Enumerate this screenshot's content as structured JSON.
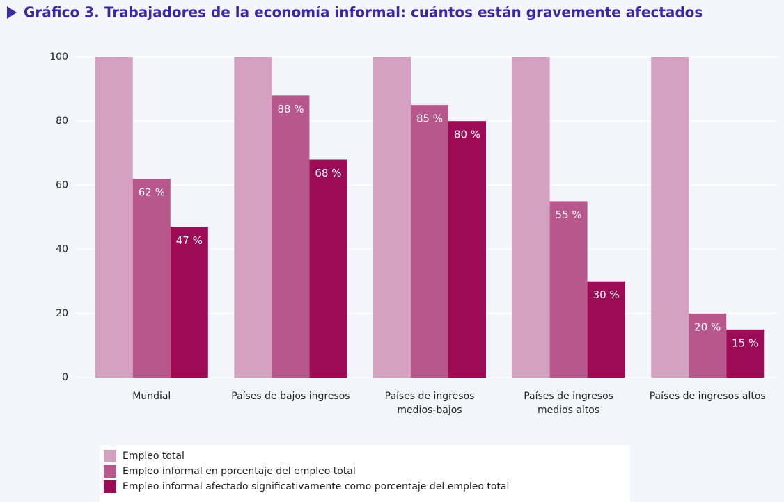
{
  "chart_data": {
    "type": "bar",
    "title": "Gráfico 3. Trabajadores de la economía informal: cuántos están gravemente afectados",
    "categories": [
      "Mundial",
      "Países de bajos ingresos",
      "Países de ingresos\nmedios-bajos",
      "Países de ingresos\nmedios altos",
      "Países de ingresos altos"
    ],
    "series": [
      {
        "name": "Empleo total",
        "color": "#d4a1c1",
        "values": [
          100,
          100,
          100,
          100,
          100
        ]
      },
      {
        "name": "Empleo informal en porcentaje del empleo total",
        "color": "#b8578b",
        "values": [
          62,
          88,
          85,
          55,
          20
        ],
        "value_labels": [
          "62 %",
          "88 %",
          "85 %",
          "55 %",
          "20 %"
        ]
      },
      {
        "name": "Empleo informal afectado significativamente como porcentaje del empleo total",
        "color": "#9c0c56",
        "values": [
          47,
          68,
          80,
          30,
          15
        ],
        "value_labels": [
          "47 %",
          "68 %",
          "80 %",
          "30 %",
          "15 %"
        ]
      }
    ],
    "ylim": [
      0,
      100
    ],
    "yticks": [
      0,
      20,
      40,
      60,
      80,
      100
    ],
    "grid": true
  }
}
